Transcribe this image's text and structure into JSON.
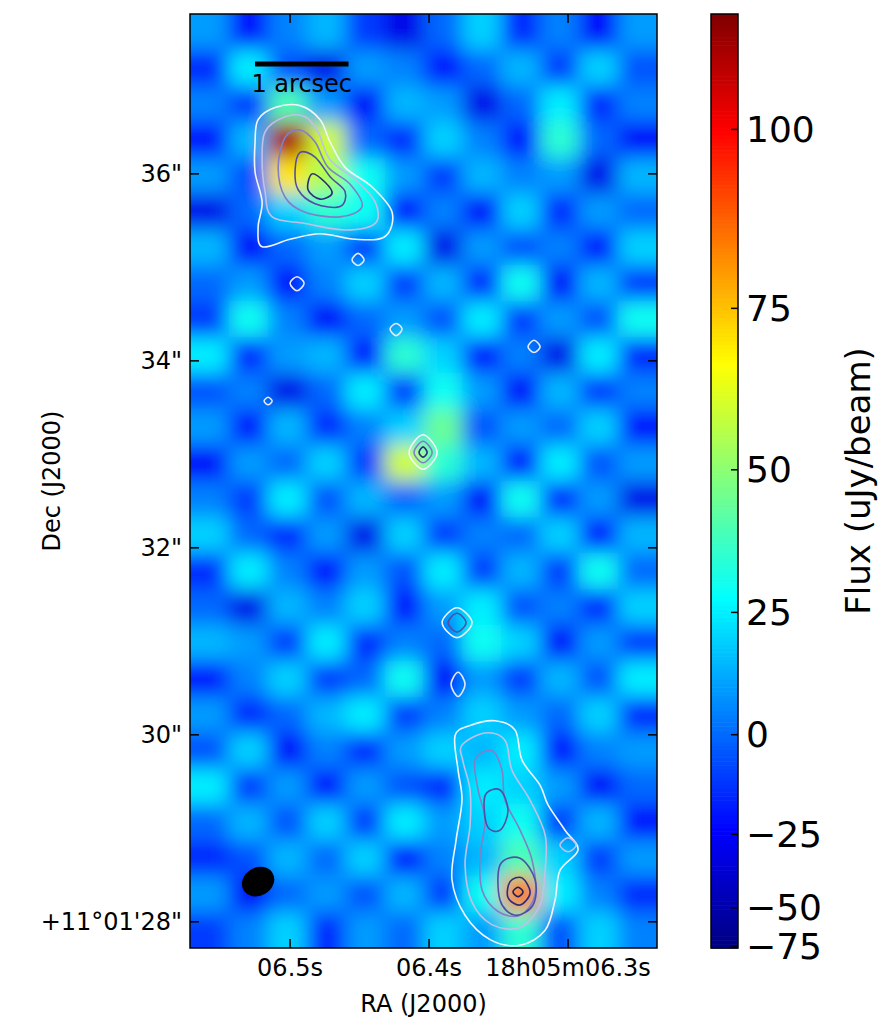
{
  "chart_data": {
    "type": "heatmap",
    "xlabel": "RA (J2000)",
    "ylabel": "Dec (J2000)",
    "xlim": [
      6.572,
      6.236
    ],
    "ylim": [
      27.72,
      37.71
    ],
    "xticks": [
      {
        "value": 6.5,
        "label": "06.5s"
      },
      {
        "value": 6.4,
        "label": "06.4s"
      },
      {
        "value": 6.3,
        "label": "18h05m06.3s"
      }
    ],
    "yticks": [
      {
        "value": 28,
        "label": "+11°01'28\""
      },
      {
        "value": 30,
        "label": "30\""
      },
      {
        "value": 32,
        "label": "32\""
      },
      {
        "value": 34,
        "label": "34\""
      },
      {
        "value": 36,
        "label": "36\""
      }
    ],
    "colorbar_label": "Flux (uJy/beam)",
    "colorbar_range": [
      -78,
      115
    ],
    "colorbar_ticks": [
      {
        "value": -75,
        "label": "−75"
      },
      {
        "value": -50,
        "label": "−50"
      },
      {
        "value": -25,
        "label": "−25"
      },
      0,
      25,
      50,
      75,
      100
    ],
    "cells": [
      [
        10,
        -20,
        5,
        15,
        -10,
        -30,
        0,
        20,
        -15,
        5,
        -25,
        10
      ],
      [
        -15,
        25,
        -5,
        -30,
        10,
        5,
        -20,
        0,
        15,
        -10,
        20,
        -5
      ],
      [
        5,
        -10,
        40,
        10,
        -25,
        15,
        10,
        -30,
        0,
        25,
        -15,
        5
      ],
      [
        -20,
        15,
        110,
        60,
        0,
        -15,
        20,
        5,
        -20,
        35,
        0,
        -25
      ],
      [
        10,
        -5,
        70,
        55,
        30,
        10,
        -10,
        15,
        5,
        10,
        -30,
        15
      ],
      [
        -30,
        0,
        20,
        35,
        30,
        -20,
        5,
        -25,
        20,
        -15,
        10,
        0
      ],
      [
        15,
        -25,
        0,
        10,
        -10,
        25,
        -30,
        10,
        -5,
        5,
        -20,
        20
      ],
      [
        0,
        10,
        -20,
        5,
        20,
        -10,
        15,
        -15,
        30,
        -25,
        15,
        -10
      ],
      [
        -10,
        30,
        5,
        -25,
        0,
        10,
        -5,
        25,
        -10,
        10,
        -5,
        30
      ],
      [
        25,
        -15,
        10,
        15,
        -20,
        35,
        20,
        -20,
        5,
        -30,
        25,
        -15
      ],
      [
        -5,
        5,
        -30,
        0,
        25,
        -10,
        30,
        10,
        -25,
        15,
        -10,
        5
      ],
      [
        10,
        -20,
        15,
        -15,
        5,
        20,
        45,
        -5,
        10,
        0,
        20,
        -20
      ],
      [
        -25,
        10,
        0,
        20,
        -10,
        60,
        35,
        15,
        -20,
        25,
        -5,
        10
      ],
      [
        5,
        -10,
        25,
        -5,
        15,
        0,
        10,
        -25,
        30,
        -15,
        10,
        -30
      ],
      [
        20,
        0,
        -15,
        10,
        -30,
        20,
        -10,
        5,
        0,
        20,
        -20,
        15
      ],
      [
        -15,
        25,
        5,
        -20,
        10,
        -5,
        25,
        -10,
        15,
        -10,
        30,
        0
      ],
      [
        0,
        -30,
        15,
        5,
        20,
        -20,
        10,
        25,
        -5,
        5,
        -15,
        20
      ],
      [
        15,
        10,
        -10,
        25,
        -15,
        5,
        0,
        30,
        20,
        -25,
        10,
        -10
      ],
      [
        -20,
        5,
        20,
        -10,
        0,
        30,
        -25,
        10,
        -10,
        15,
        -5,
        25
      ],
      [
        10,
        -15,
        0,
        15,
        25,
        -10,
        5,
        20,
        10,
        0,
        20,
        -15
      ],
      [
        -5,
        20,
        -25,
        5,
        -15,
        10,
        20,
        15,
        25,
        -20,
        5,
        10
      ],
      [
        25,
        -10,
        10,
        -20,
        10,
        -5,
        -15,
        25,
        20,
        10,
        -25,
        0
      ],
      [
        0,
        15,
        -5,
        20,
        -10,
        25,
        10,
        20,
        30,
        -10,
        15,
        -20
      ],
      [
        -15,
        -5,
        15,
        0,
        20,
        -20,
        5,
        15,
        40,
        20,
        -10,
        10
      ],
      [
        10,
        -25,
        0,
        10,
        -5,
        15,
        -10,
        30,
        85,
        25,
        5,
        -15
      ],
      [
        -10,
        5,
        20,
        -15,
        10,
        0,
        20,
        10,
        35,
        -5,
        20,
        5
      ]
    ],
    "contours": [
      {
        "color": "#f4f4ff",
        "x": [
          6.523,
          6.5108,
          6.4928,
          6.4784,
          6.4712,
          6.4604,
          6.441,
          6.4266,
          6.4317,
          6.4532,
          6.4784,
          6.5,
          6.5201,
          6.523,
          6.5201,
          6.5252,
          6.5252
        ],
        "y": [
          36.58,
          36.71,
          36.73,
          36.58,
          36.34,
          36.07,
          35.86,
          35.59,
          35.33,
          35.3,
          35.36,
          35.3,
          35.22,
          35.43,
          35.7,
          36.02,
          36.34
        ]
      },
      {
        "color": "#c0c0e8",
        "x": [
          6.518,
          6.5036,
          6.4892,
          6.4799,
          6.4712,
          6.4532,
          6.4388,
          6.4388,
          6.4604,
          6.4892,
          6.5129,
          6.518,
          6.5201
        ],
        "y": [
          36.45,
          36.61,
          36.61,
          36.45,
          36.15,
          35.94,
          35.7,
          35.47,
          35.4,
          35.47,
          35.54,
          35.81,
          36.13
        ]
      },
      {
        "color": "#8080c8",
        "x": [
          6.5036,
          6.4928,
          6.482,
          6.4727,
          6.4568,
          6.4482,
          6.464,
          6.4892,
          6.5036,
          6.5086
        ],
        "y": [
          36.39,
          36.47,
          36.34,
          36.07,
          35.89,
          35.65,
          35.54,
          35.59,
          35.75,
          36.07
        ]
      },
      {
        "color": "#5050a0",
        "x": [
          6.4928,
          6.482,
          6.4712,
          6.4604,
          6.464,
          6.482,
          6.4942,
          6.4964
        ],
        "y": [
          36.23,
          36.18,
          35.97,
          35.81,
          35.65,
          35.68,
          35.83,
          36.04
        ]
      },
      {
        "color": "#2c2c78",
        "x": [
          6.4842,
          6.4748,
          6.4698,
          6.4784,
          6.4871
        ],
        "y": [
          36.0,
          35.91,
          35.79,
          35.73,
          35.83
        ]
      },
      {
        "color": "#e8e8f8",
        "x": [
          6.4554,
          6.4511,
          6.4468,
          6.4511
        ],
        "y": [
          35.08,
          35.15,
          35.08,
          35.02
        ]
      },
      {
        "color": "#e8e8f8",
        "x": [
          6.5,
          6.495,
          6.4899,
          6.495
        ],
        "y": [
          34.83,
          34.9,
          34.83,
          34.75
        ]
      },
      {
        "color": "#e8e8f8",
        "x": [
          6.4281,
          6.4237,
          6.4194,
          6.4237
        ],
        "y": [
          34.34,
          34.4,
          34.34,
          34.27
        ]
      },
      {
        "color": "#e8e8f8",
        "x": [
          6.3288,
          6.3245,
          6.3201,
          6.3245
        ],
        "y": [
          34.15,
          34.22,
          34.15,
          34.09
        ]
      },
      {
        "color": "#e8e8f8",
        "x": [
          6.5187,
          6.5158,
          6.5129,
          6.5158
        ],
        "y": [
          33.57,
          33.61,
          33.57,
          33.53
        ]
      },
      {
        "color": "#f4f4ff",
        "x": [
          6.4144,
          6.4043,
          6.3942,
          6.4043
        ],
        "y": [
          33.02,
          33.21,
          33.02,
          32.84
        ]
      },
      {
        "color": "#8080c8",
        "x": [
          6.4108,
          6.4043,
          6.3978,
          6.4043
        ],
        "y": [
          33.02,
          33.14,
          33.02,
          32.91
        ]
      },
      {
        "color": "#2c2c78",
        "x": [
          6.4072,
          6.4043,
          6.4014,
          6.4043
        ],
        "y": [
          33.02,
          33.08,
          33.02,
          32.97
        ]
      },
      {
        "color": "#f4f4ff",
        "x": [
          6.3906,
          6.3799,
          6.3691,
          6.3799
        ],
        "y": [
          31.2,
          31.36,
          31.2,
          31.04
        ]
      },
      {
        "color": "#5050a0",
        "x": [
          6.3863,
          6.3799,
          6.3734,
          6.3799
        ],
        "y": [
          31.2,
          31.3,
          31.2,
          31.1
        ]
      },
      {
        "color": "#e8e8f8",
        "x": [
          6.3842,
          6.3791,
          6.3741,
          6.3791
        ],
        "y": [
          30.54,
          30.67,
          30.54,
          30.41
        ]
      },
      {
        "color": "#f4f4ff",
        "x": [
          6.3813,
          6.3705,
          6.3525,
          6.3381,
          6.3331,
          6.3201,
          6.3144,
          6.3022,
          6.2928,
          6.3058,
          6.3094,
          6.3165,
          6.3345,
          6.3561,
          6.3741,
          6.3835,
          6.3806,
          6.3763,
          6.3791
        ],
        "y": [
          29.99,
          30.1,
          30.15,
          30.05,
          29.73,
          29.46,
          29.25,
          28.98,
          28.77,
          28.55,
          28.23,
          27.91,
          27.75,
          27.81,
          28.07,
          28.45,
          28.87,
          29.3,
          29.62
        ]
      },
      {
        "color": "#c0c0e8",
        "x": [
          6.3763,
          6.3597,
          6.3453,
          6.3403,
          6.3273,
          6.3165,
          6.3165,
          6.3201,
          6.3345,
          6.3547,
          6.3691,
          6.3741,
          6.3705,
          6.3705,
          6.3755
        ],
        "y": [
          29.89,
          30.02,
          29.94,
          29.62,
          29.3,
          28.93,
          28.55,
          28.18,
          27.94,
          27.97,
          28.21,
          28.61,
          29.03,
          29.41,
          29.71
        ]
      },
      {
        "color": "#8080c8",
        "x": [
          6.3669,
          6.3547,
          6.3475,
          6.3453,
          6.3345,
          6.3259,
          6.3237,
          6.3345,
          6.3504,
          6.3619,
          6.3633,
          6.3597,
          6.3647
        ],
        "y": [
          29.73,
          29.83,
          29.62,
          29.3,
          28.98,
          28.66,
          28.29,
          28.07,
          28.11,
          28.34,
          28.71,
          29.09,
          29.41
        ]
      },
      {
        "color": "#5050a0",
        "x": [
          6.3597,
          6.3489,
          6.3432,
          6.3489,
          6.3583
        ],
        "y": [
          29.35,
          29.41,
          29.19,
          28.98,
          29.03
        ]
      },
      {
        "color": "#5050a0",
        "x": [
          6.3489,
          6.3345,
          6.3237,
          6.3252,
          6.3381,
          6.3489
        ],
        "y": [
          28.61,
          28.68,
          28.45,
          28.18,
          28.07,
          28.23
        ]
      },
      {
        "color": "#2c2c78",
        "x": [
          6.3417,
          6.3331,
          6.3273,
          6.3345,
          6.3432
        ],
        "y": [
          28.43,
          28.47,
          28.31,
          28.18,
          28.26
        ]
      },
      {
        "color": "#1e1e5a",
        "x": [
          6.3396,
          6.336,
          6.3324,
          6.336
        ],
        "y": [
          28.32,
          28.37,
          28.32,
          28.27
        ]
      },
      {
        "color": "#c0c0e8",
        "x": [
          6.3058,
          6.3,
          6.2942,
          6.3
        ],
        "y": [
          28.82,
          28.9,
          28.82,
          28.75
        ]
      }
    ],
    "beam": {
      "x": 6.523,
      "y": 28.43,
      "width": 0.36,
      "height": 0.3
    },
    "scale_bar": {
      "label": "1 arcsec",
      "length": 1
    }
  }
}
